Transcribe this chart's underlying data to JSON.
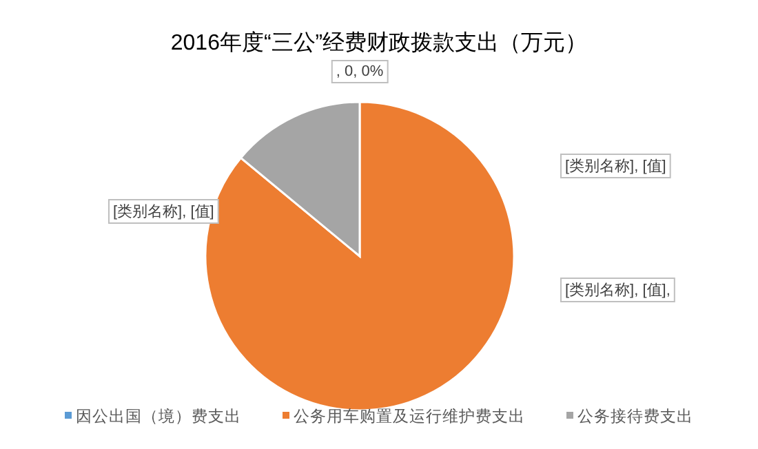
{
  "chart_data": {
    "type": "pie",
    "title": "2016年度“三公”经费财政拨款支出（万元）",
    "categories": [
      "因公出国（境）费支出",
      "公务用车购置及运行维护费支出",
      "公务接待费支出"
    ],
    "values": [
      0,
      86,
      14
    ],
    "colors": [
      "#5b9bd5",
      "#ed7d31",
      "#a5a5a5"
    ],
    "legend": "bottom",
    "annotations": [
      ", 0, 0%",
      "[类别名称], [值]",
      "[类别名称], [值],",
      "[类别名称], [值]"
    ]
  }
}
